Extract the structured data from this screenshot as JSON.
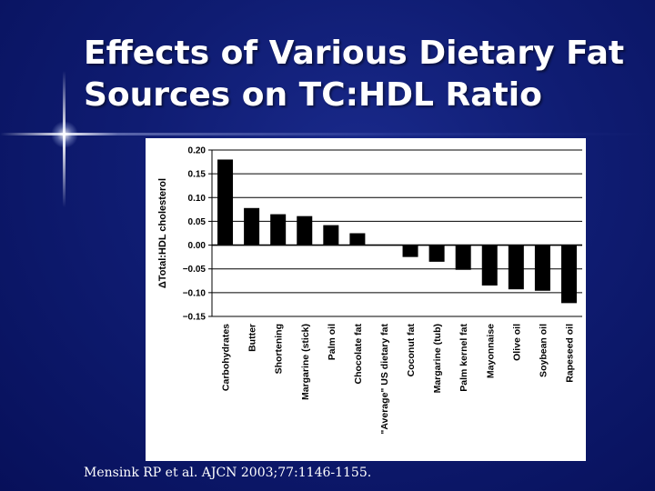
{
  "slide": {
    "title": "Effects of Various Dietary Fat Sources on TC:HDL Ratio",
    "citation": "Mensink RP et al. AJCN 2003;77:1146-1155."
  },
  "colors": {
    "background": "#0f1c72",
    "bar": "#000000",
    "panel": "#ffffff",
    "text": "#ffffff"
  },
  "chart_data": {
    "type": "bar",
    "ylabel": "ΔTotal:HDL cholesterol",
    "xlabel": "",
    "ylim": [
      -0.15,
      0.2
    ],
    "yticks": [
      0.2,
      0.15,
      0.1,
      0.05,
      0.0,
      -0.05,
      -0.1,
      -0.15
    ],
    "ytick_labels": [
      "0.20",
      "0.15",
      "0.10",
      "0.05",
      "0.00",
      "−0.05",
      "−0.10",
      "−0.15"
    ],
    "grid": "horizontal",
    "categories": [
      "Carbohydrates",
      "Butter",
      "Shortening",
      "Margarine (stick)",
      "Palm oil",
      "Chocolate fat",
      "\"Average\" US dietary fat",
      "Coconut fat",
      "Margarine (tub)",
      "Palm kernel fat",
      "Mayonnaise",
      "Olive oil",
      "Soybean oil",
      "Rapeseed oil"
    ],
    "values": [
      0.18,
      0.078,
      0.065,
      0.061,
      0.042,
      0.025,
      0.0,
      -0.025,
      -0.035,
      -0.052,
      -0.085,
      -0.093,
      -0.096,
      -0.122
    ]
  }
}
